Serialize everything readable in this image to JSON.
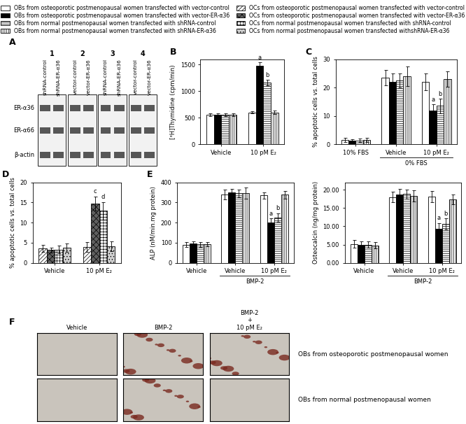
{
  "figure": {
    "A": {
      "panel": "A",
      "groups": [
        "1",
        "2",
        "3",
        "4"
      ],
      "lanes": [
        "shRNA-control",
        "shRNA-ER-α36",
        "vector-control",
        "vector-ER-α36",
        "shRNA-control",
        "shRNA-ER-α36",
        "vector-control",
        "vector-ER-α36"
      ],
      "rows": [
        "ER-α36",
        "ER-α66",
        "β-actin"
      ]
    },
    "F": {
      "panel": "F",
      "columns": [
        "Vehicle",
        "BMP-2",
        "BMP-2\n+\n10 pM E₂"
      ],
      "rows": [
        "OBs from osteoporotic postmenopausal women",
        "OBs from normal postmenopausal women"
      ]
    }
  },
  "chart_data": [
    {
      "panel": "B",
      "type": "bar",
      "y_label": "[³H]Thymidine (cpm/min)",
      "categories": [
        "Vehicle",
        "10 pM E₂"
      ],
      "ylim": [
        0,
        1600
      ],
      "yticks": [
        0,
        500,
        1000,
        1500
      ],
      "series": [
        {
          "name": "OBs from osteoporotic postmenopausal women transfected with vector-control",
          "color": "#ffffff",
          "values": [
            560,
            600
          ],
          "errors": [
            25,
            25
          ]
        },
        {
          "name": "OBs from osteoporotic postmenopausal women transfected with vector-ER-α36",
          "color": "#000000",
          "values": [
            550,
            1480
          ],
          "errors": [
            25,
            60
          ]
        },
        {
          "name": "OBs from normal postmenopausal women transfected with shRNA-control",
          "color": "#ffffff",
          "values": [
            560,
            1160
          ],
          "errors": [
            25,
            50
          ]
        },
        {
          "name": "OBs from normal postmenopausal women transfected with shRNA-ER-α36",
          "color": "#ffffff",
          "values": [
            550,
            600
          ],
          "errors": [
            25,
            30
          ]
        }
      ],
      "annotations": [
        {
          "text": "a",
          "category": "10 pM E₂",
          "series": 1
        },
        {
          "text": "b",
          "category": "10 pM E₂",
          "series": 2
        }
      ]
    },
    {
      "panel": "C",
      "type": "bar",
      "y_label": "% apoptotic cells vs. total cells",
      "categories": [
        "10% FBS",
        "Vehicle",
        "10 pM E₂"
      ],
      "group_label": "0% FBS",
      "group_start": 1,
      "ylim": [
        0,
        30
      ],
      "yticks": [
        0,
        10,
        20,
        30
      ],
      "series": [
        {
          "name": "OBs from osteoporotic postmenopausal women transfected with vector-control",
          "color": "#ffffff",
          "values": [
            1.5,
            23.5,
            22
          ],
          "errors": [
            0.7,
            2.8,
            3
          ]
        },
        {
          "name": "OBs from osteoporotic postmenopausal women transfected with vector-ER-α36",
          "color": "#000000",
          "values": [
            1.2,
            22,
            12
          ],
          "errors": [
            0.5,
            3,
            2
          ]
        },
        {
          "name": "OBs from normal postmenopausal women transfected with shRNA-control",
          "color": "#ffffff",
          "values": [
            1.3,
            22.5,
            13.5
          ],
          "errors": [
            0.6,
            2.5,
            2.5
          ]
        },
        {
          "name": "OBs from normal postmenopausal women transfected with shRNA-ER-α36",
          "color": "#ffffff",
          "values": [
            1.5,
            24,
            23
          ],
          "errors": [
            0.8,
            3.5,
            2.8
          ]
        }
      ],
      "annotations": [
        {
          "text": "a",
          "category": "10 pM E₂",
          "series": 1
        },
        {
          "text": "b",
          "category": "10 pM E₂",
          "series": 2
        }
      ]
    },
    {
      "panel": "D",
      "type": "bar",
      "y_label": "% apoptotic cells vs. total cells",
      "categories": [
        "Vehicle",
        "10 pM E₂"
      ],
      "ylim": [
        0,
        20
      ],
      "yticks": [
        0,
        5,
        10,
        15,
        20
      ],
      "series": [
        {
          "name": "OCs from osteoporotic postmenopausal women transfected with vector-control",
          "color": "#ffffff",
          "values": [
            3.6,
            3.9
          ],
          "errors": [
            0.8,
            1.2
          ]
        },
        {
          "name": "OCs from osteoporotic postmenopausal women transfected with vector-ER-α36",
          "color": "#606060",
          "values": [
            3.2,
            14.7
          ],
          "errors": [
            0.6,
            1.8
          ]
        },
        {
          "name": "OCs from normal postmenopausal women transfected with shRNA-control",
          "color": "#ffffff",
          "values": [
            3.3,
            12.9
          ],
          "errors": [
            1.0,
            2.2
          ]
        },
        {
          "name": "OCs from normal postmenopausal women transfected withshRNA-ER-α36",
          "color": "#d0d0d0",
          "values": [
            3.8,
            4.1
          ],
          "errors": [
            1.0,
            1.2
          ]
        }
      ],
      "annotations": [
        {
          "text": "c",
          "category": "10 pM E₂",
          "series": 1
        },
        {
          "text": "d",
          "category": "10 pM E₂",
          "series": 2
        }
      ]
    },
    {
      "panel": "E",
      "type": "bar",
      "y_label": "ALP (nM/min.mg protein)",
      "categories": [
        "Vehicle",
        "Vehicle",
        "10 pM E₂"
      ],
      "group_label": "BMP-2",
      "group_start": 1,
      "ylim": [
        0,
        400
      ],
      "yticks": [
        0,
        100,
        200,
        300,
        400
      ],
      "series": [
        {
          "name": "OBs from osteoporotic postmenopausal women transfected with vector-control",
          "color": "#ffffff",
          "values": [
            90,
            340,
            335
          ],
          "errors": [
            12,
            25,
            15
          ]
        },
        {
          "name": "OBs from osteoporotic postmenopausal women transfected with vector-ER-α36",
          "color": "#000000",
          "values": [
            95,
            350,
            200
          ],
          "errors": [
            10,
            18,
            20
          ]
        },
        {
          "name": "OBs from normal postmenopausal women transfected with shRNA-control",
          "color": "#ffffff",
          "values": [
            92,
            345,
            225
          ],
          "errors": [
            12,
            20,
            22
          ]
        },
        {
          "name": "OBs from normal postmenopausal women transfected with shRNA-ER-α36",
          "color": "#ffffff",
          "values": [
            92,
            345,
            338
          ],
          "errors": [
            10,
            28,
            20
          ]
        }
      ],
      "annotations": [
        {
          "text": "a",
          "category": "10 pM E₂",
          "series": 1
        },
        {
          "text": "b",
          "category": "10 pM E₂",
          "series": 2
        }
      ]
    },
    {
      "type": "bar",
      "y_label": "Osteocalcin (ng/mg protein)",
      "categories": [
        "Vehicle",
        "Vehicle",
        "10 pM E₂"
      ],
      "group_label": "BMP-2",
      "group_start": 1,
      "ylim": [
        0,
        22
      ],
      "yticks": [
        {
          "value": 0,
          "label": "0.00"
        },
        {
          "value": 5,
          "label": "5.00"
        },
        {
          "value": 10,
          "label": "10.00"
        },
        {
          "value": 15,
          "label": "15.00"
        },
        {
          "value": 20,
          "label": "20.00"
        }
      ],
      "series": [
        {
          "name": "OBs from osteoporotic postmenopausal women transfected with vector-control",
          "color": "#ffffff",
          "values": [
            5.2,
            18,
            18.1
          ],
          "errors": [
            1.0,
            1.5,
            1.5
          ]
        },
        {
          "name": "OBs from osteoporotic postmenopausal women transfected with vector-ER-α36",
          "color": "#000000",
          "values": [
            5.0,
            18.7,
            9.4
          ],
          "errors": [
            0.8,
            1.5,
            1.5
          ]
        },
        {
          "name": "OBs from normal postmenopausal women transfected with shRNA-control",
          "color": "#ffffff",
          "values": [
            5.0,
            18.8,
            10.7
          ],
          "errors": [
            0.8,
            1.3,
            1.5
          ]
        },
        {
          "name": "OBs from normal postmenopausal women transfected with shRNA-ER-α36",
          "color": "#ffffff",
          "values": [
            4.8,
            18.3,
            17.3
          ],
          "errors": [
            0.9,
            1.5,
            1.3
          ]
        }
      ],
      "annotations": [
        {
          "text": "a",
          "category": "10 pM E₂",
          "series": 1
        },
        {
          "text": "b",
          "category": "10 pM E₂",
          "series": 2
        }
      ]
    }
  ]
}
